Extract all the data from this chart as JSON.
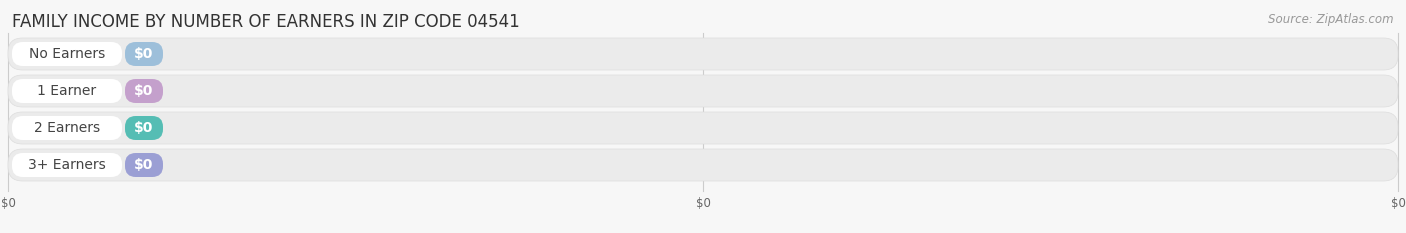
{
  "title": "FAMILY INCOME BY NUMBER OF EARNERS IN ZIP CODE 04541",
  "source": "Source: ZipAtlas.com",
  "categories": [
    "No Earners",
    "1 Earner",
    "2 Earners",
    "3+ Earners"
  ],
  "values": [
    0,
    0,
    0,
    0
  ],
  "bar_colors": [
    "#9dbfda",
    "#c4a0cc",
    "#55bdb4",
    "#9b9fd4"
  ],
  "value_labels": [
    "$0",
    "$0",
    "$0",
    "$0"
  ],
  "x_tick_labels": [
    "$0",
    "$0",
    "$0"
  ],
  "xlim": [
    0,
    1.0
  ],
  "background_color": "#f7f7f7",
  "row_bg_color": "#ebebeb",
  "title_fontsize": 12,
  "source_fontsize": 8.5,
  "label_fontsize": 10,
  "value_fontsize": 10
}
